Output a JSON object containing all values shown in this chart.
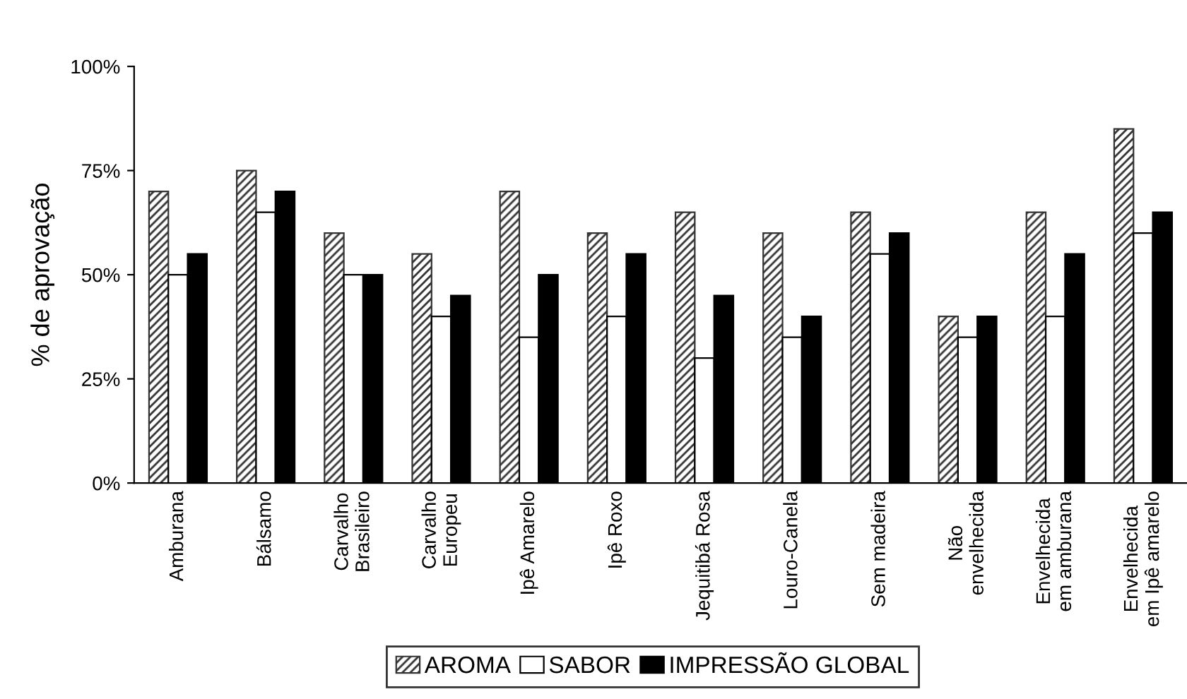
{
  "chart_data": {
    "type": "bar",
    "ylabel": "% de aprovação",
    "categories": [
      "Amburana",
      "Bálsamo",
      "Carvalho\nBrasileiro",
      "Carvalho\nEuropeu",
      "Ipê Amarelo",
      "Ipê Roxo",
      "Jequitibá Rosa",
      "Louro-Canela",
      "Sem madeira",
      "Não\nenvelhecida",
      "Envelhecida\nem amburana",
      "Envelhecida\nem Ipê amarelo"
    ],
    "series": [
      {
        "name": "AROMA",
        "color": "#333333",
        "values": [
          70,
          75,
          60,
          55,
          70,
          60,
          65,
          60,
          65,
          40,
          65,
          85
        ]
      },
      {
        "name": "SABOR",
        "color": "#ffffff",
        "values": [
          50,
          65,
          50,
          40,
          35,
          40,
          30,
          35,
          55,
          35,
          40,
          60
        ]
      },
      {
        "name": "IMPRESSÃO GLOBAL",
        "color": "#000000",
        "values": [
          55,
          70,
          50,
          45,
          50,
          55,
          45,
          40,
          60,
          40,
          55,
          65
        ]
      }
    ],
    "ylim": [
      0,
      100
    ],
    "yticks": [
      {
        "value": 0,
        "label": "0%"
      },
      {
        "value": 25,
        "label": "25%"
      },
      {
        "value": 50,
        "label": "50%"
      },
      {
        "value": 75,
        "label": "75%"
      },
      {
        "value": 100,
        "label": "100%"
      }
    ],
    "grid": false,
    "legend": "bottom"
  }
}
